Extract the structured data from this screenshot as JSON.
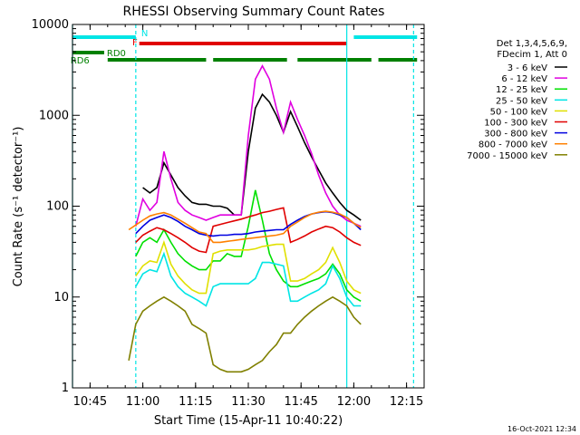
{
  "chart_data": {
    "type": "line",
    "title": "RHESSI Observing Summary Count Rates",
    "xlabel": "Start Time (15-Apr-11 10:40:22)",
    "ylabel": "Count Rate (s⁻¹ detector⁻¹)",
    "y_scale": "log",
    "ylim": [
      1,
      10000
    ],
    "xlim": [
      "10:40",
      "12:20"
    ],
    "x_ticks": [
      "10:45",
      "11:00",
      "11:15",
      "11:30",
      "11:45",
      "12:00",
      "12:15"
    ],
    "y_ticks": [
      "1",
      "10",
      "100",
      "1000",
      "10000"
    ],
    "legend_header": [
      "Det 1,3,4,5,6,9,",
      "FDecim 1, Att 0"
    ],
    "legend_position": "right",
    "timestamp": "16-Oct-2021 12:34",
    "flag_bars": [
      {
        "label": "N",
        "color": "#00e5e5",
        "segments": [
          [
            "10:40",
            "10:58"
          ],
          [
            "12:00",
            "12:18"
          ]
        ]
      },
      {
        "label": "F",
        "color": "#e00000",
        "segments": [
          [
            "10:59",
            "11:58"
          ]
        ]
      },
      {
        "label": "RD0",
        "color": "#008000",
        "segments": [
          [
            "10:40",
            "10:49"
          ]
        ]
      },
      {
        "label": "RD6",
        "color": "#008000",
        "segments": [
          [
            "10:50",
            "11:18"
          ],
          [
            "11:20",
            "11:41"
          ],
          [
            "11:44",
            "12:05"
          ],
          [
            "12:07",
            "12:18"
          ]
        ]
      }
    ],
    "vlines": [
      {
        "x": "10:40",
        "style": "solid",
        "color": "#00e5e5"
      },
      {
        "x": "10:58",
        "style": "dashed",
        "color": "#00e5e5"
      },
      {
        "x": "11:58",
        "style": "solid",
        "color": "#00e5e5"
      },
      {
        "x": "12:17",
        "style": "dashed",
        "color": "#00e5e5"
      }
    ],
    "x": [
      "10:53",
      "10:56",
      "10:58",
      "11:00",
      "11:02",
      "11:04",
      "11:06",
      "11:08",
      "11:10",
      "11:12",
      "11:14",
      "11:16",
      "11:18",
      "11:20",
      "11:22",
      "11:24",
      "11:26",
      "11:28",
      "11:30",
      "11:32",
      "11:34",
      "11:36",
      "11:38",
      "11:40",
      "11:42",
      "11:44",
      "11:46",
      "11:48",
      "11:50",
      "11:52",
      "11:54",
      "11:56",
      "11:58",
      "12:00",
      "12:02"
    ],
    "series": [
      {
        "name": "3 - 6 keV",
        "color": "#000000",
        "values": [
          null,
          null,
          null,
          160,
          140,
          160,
          300,
          220,
          160,
          130,
          110,
          105,
          105,
          100,
          100,
          95,
          80,
          80,
          400,
          1200,
          1700,
          1400,
          1000,
          650,
          1100,
          750,
          500,
          350,
          250,
          180,
          140,
          110,
          90,
          80,
          70
        ]
      },
      {
        "name": "6 - 12 keV",
        "color": "#e000e0",
        "values": [
          null,
          null,
          60,
          120,
          90,
          110,
          400,
          200,
          110,
          90,
          80,
          75,
          70,
          75,
          80,
          80,
          80,
          80,
          600,
          2500,
          3500,
          2500,
          1200,
          650,
          1400,
          900,
          600,
          380,
          220,
          140,
          100,
          80,
          70,
          65,
          60
        ]
      },
      {
        "name": "12 - 25 keV",
        "color": "#00e000",
        "values": [
          null,
          null,
          28,
          40,
          45,
          40,
          55,
          40,
          30,
          25,
          22,
          20,
          20,
          25,
          25,
          30,
          28,
          28,
          60,
          150,
          70,
          30,
          20,
          15,
          13,
          13,
          14,
          15,
          16,
          18,
          23,
          18,
          12,
          10,
          9
        ]
      },
      {
        "name": "25 - 50 keV",
        "color": "#00e5e5",
        "values": [
          null,
          null,
          13,
          18,
          20,
          19,
          30,
          17,
          13,
          11,
          10,
          9,
          8,
          13,
          14,
          14,
          14,
          14,
          14,
          16,
          24,
          24,
          23,
          22,
          9,
          9,
          10,
          11,
          12,
          14,
          22,
          16,
          10,
          8,
          8
        ]
      },
      {
        "name": "50 - 100 keV",
        "color": "#e0e000",
        "values": [
          null,
          null,
          17,
          22,
          25,
          24,
          40,
          23,
          17,
          14,
          12,
          11,
          11,
          30,
          32,
          33,
          33,
          33,
          33,
          34,
          36,
          37,
          38,
          38,
          15,
          15,
          16,
          18,
          20,
          24,
          35,
          24,
          15,
          12,
          11
        ]
      },
      {
        "name": "100 - 300 keV",
        "color": "#e00000",
        "values": [
          null,
          null,
          40,
          48,
          53,
          58,
          55,
          50,
          45,
          40,
          35,
          32,
          31,
          60,
          63,
          66,
          69,
          72,
          76,
          80,
          85,
          88,
          92,
          96,
          40,
          43,
          47,
          52,
          56,
          60,
          58,
          52,
          45,
          40,
          37
        ]
      },
      {
        "name": "300 - 800 keV",
        "color": "#0000e0",
        "values": [
          null,
          null,
          50,
          60,
          70,
          75,
          80,
          75,
          68,
          60,
          55,
          50,
          48,
          47,
          48,
          48,
          49,
          49,
          50,
          52,
          53,
          54,
          55,
          55,
          63,
          70,
          77,
          82,
          85,
          87,
          85,
          80,
          75,
          65,
          55
        ]
      },
      {
        "name": "800 - 7000 keV",
        "color": "#ff8000",
        "values": [
          null,
          55,
          62,
          70,
          78,
          82,
          85,
          80,
          72,
          65,
          58,
          52,
          50,
          40,
          40,
          41,
          42,
          43,
          44,
          45,
          46,
          47,
          48,
          50,
          60,
          67,
          75,
          82,
          86,
          88,
          86,
          82,
          75,
          65,
          58
        ]
      },
      {
        "name": "7000 - 15000 keV",
        "color": "#808000",
        "values": [
          null,
          2,
          5,
          7,
          8,
          9,
          10,
          9,
          8,
          7,
          5,
          4.5,
          4,
          1.8,
          1.6,
          1.5,
          1.5,
          1.5,
          1.6,
          1.8,
          2,
          2.5,
          3,
          4,
          4,
          5,
          6,
          7,
          8,
          9,
          10,
          9,
          8,
          6,
          5
        ]
      }
    ]
  }
}
